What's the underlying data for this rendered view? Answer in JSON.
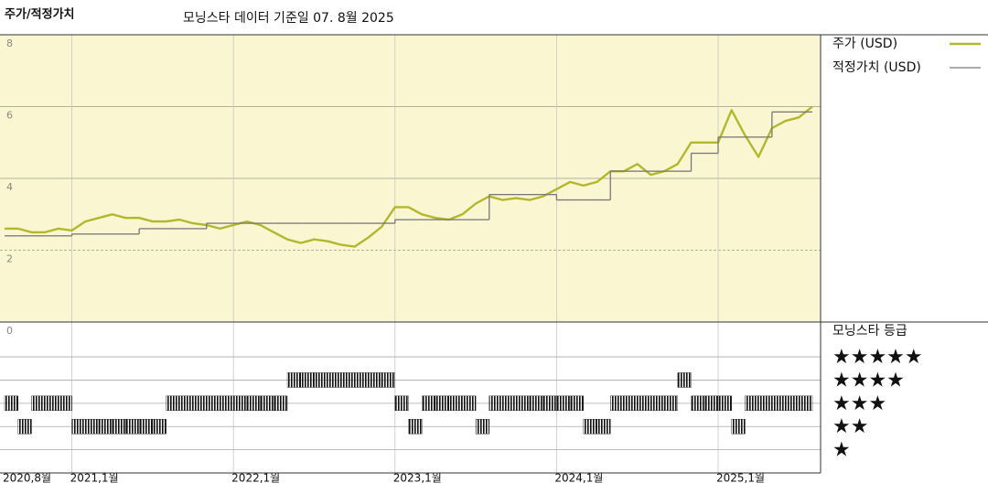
{
  "header": {
    "title": "주가/적정가치",
    "subtitle": "모닝스타 데이터 기준일 07. 8월 2025"
  },
  "chart_data": {
    "type": "line",
    "x": [
      "2020-08",
      "2020-09",
      "2020-10",
      "2020-11",
      "2020-12",
      "2021-01",
      "2021-02",
      "2021-03",
      "2021-04",
      "2021-05",
      "2021-06",
      "2021-07",
      "2021-08",
      "2021-09",
      "2021-10",
      "2021-11",
      "2021-12",
      "2022-01",
      "2022-02",
      "2022-03",
      "2022-04",
      "2022-05",
      "2022-06",
      "2022-07",
      "2022-08",
      "2022-09",
      "2022-10",
      "2022-11",
      "2022-12",
      "2023-01",
      "2023-02",
      "2023-03",
      "2023-04",
      "2023-05",
      "2023-06",
      "2023-07",
      "2023-08",
      "2023-09",
      "2023-10",
      "2023-11",
      "2023-12",
      "2024-01",
      "2024-02",
      "2024-03",
      "2024-04",
      "2024-05",
      "2024-06",
      "2024-07",
      "2024-08",
      "2024-09",
      "2024-10",
      "2024-11",
      "2024-12",
      "2025-01",
      "2025-02",
      "2025-03",
      "2025-04",
      "2025-05",
      "2025-06",
      "2025-07",
      "2025-08"
    ],
    "xticks": [
      {
        "value": "2020-08",
        "label": "2020,8월"
      },
      {
        "value": "2021-01",
        "label": "2021,1월"
      },
      {
        "value": "2022-01",
        "label": "2022,1월"
      },
      {
        "value": "2023-01",
        "label": "2023,1월"
      },
      {
        "value": "2024-01",
        "label": "2024,1월"
      },
      {
        "value": "2025-01",
        "label": "2025,1월"
      }
    ],
    "ylim": [
      0,
      8
    ],
    "yticks": [
      0,
      2,
      4,
      6,
      8
    ],
    "series": [
      {
        "name": "주가 (USD)",
        "color": "#b3b72c",
        "values": [
          2.6,
          2.6,
          2.5,
          2.5,
          2.6,
          2.55,
          2.8,
          2.9,
          3.0,
          2.9,
          2.9,
          2.8,
          2.8,
          2.85,
          2.75,
          2.7,
          2.6,
          2.7,
          2.8,
          2.7,
          2.5,
          2.3,
          2.2,
          2.3,
          2.25,
          2.15,
          2.1,
          2.35,
          2.65,
          3.2,
          3.2,
          3.0,
          2.9,
          2.85,
          3.0,
          3.3,
          3.5,
          3.4,
          3.45,
          3.4,
          3.5,
          3.7,
          3.9,
          3.8,
          3.9,
          4.2,
          4.2,
          4.4,
          4.1,
          4.2,
          4.4,
          5.0,
          5.0,
          5.0,
          5.9,
          5.2,
          4.6,
          5.4,
          5.6,
          5.7,
          6.0
        ]
      },
      {
        "name": "적정가치 (USD)",
        "color": "#777777",
        "step": true,
        "values": [
          2.4,
          2.4,
          2.4,
          2.4,
          2.4,
          2.45,
          2.45,
          2.45,
          2.45,
          2.45,
          2.6,
          2.6,
          2.6,
          2.6,
          2.6,
          2.75,
          2.75,
          2.75,
          2.75,
          2.75,
          2.75,
          2.75,
          2.75,
          2.75,
          2.75,
          2.75,
          2.75,
          2.75,
          2.75,
          2.85,
          2.85,
          2.85,
          2.85,
          2.85,
          2.85,
          2.85,
          3.55,
          3.55,
          3.55,
          3.55,
          3.55,
          3.4,
          3.4,
          3.4,
          3.4,
          4.2,
          4.2,
          4.2,
          4.2,
          4.2,
          4.2,
          4.7,
          4.7,
          5.15,
          5.15,
          5.15,
          5.15,
          5.85,
          5.85,
          5.85,
          5.85
        ]
      }
    ],
    "ratings": {
      "title": "모닝스타 등급",
      "color": "#111111",
      "ylim": [
        0,
        6.5
      ],
      "yticks": [
        {
          "value": 5,
          "label": "★★★★★"
        },
        {
          "value": 4,
          "label": "★★★★"
        },
        {
          "value": 3,
          "label": "★★★"
        },
        {
          "value": 2,
          "label": "★★"
        },
        {
          "value": 1,
          "label": "★"
        }
      ],
      "values": [
        3,
        2,
        3,
        3,
        3,
        2,
        2,
        2,
        2,
        2,
        2,
        2,
        3,
        3,
        3,
        3,
        3,
        3,
        3,
        3,
        3,
        4,
        4,
        4,
        4,
        4,
        4,
        4,
        4,
        3,
        2,
        3,
        3,
        3,
        3,
        2,
        3,
        3,
        3,
        3,
        3,
        3,
        3,
        2,
        2,
        3,
        3,
        3,
        3,
        3,
        4,
        3,
        3,
        3,
        2,
        3,
        3,
        3,
        3,
        3,
        3
      ]
    }
  }
}
